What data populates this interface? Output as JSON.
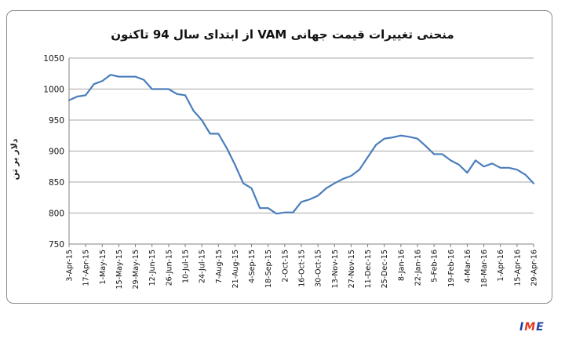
{
  "chart_data": {
    "type": "line",
    "title": "منحنی تغییرات قیمت جهانی VAM از ابتدای سال 94 تاکنون",
    "xlabel": "",
    "ylabel": "دلار بر تن",
    "ylim": [
      750,
      1050
    ],
    "yticks": [
      750,
      800,
      850,
      900,
      950,
      1000,
      1050
    ],
    "grid": true,
    "legend": "none",
    "line_color": "#4a7ebb",
    "xtick_labels": [
      "3-Apr-15",
      "17-Apr-15",
      "1-May-15",
      "15-May-15",
      "29-May-15",
      "12-Jun-15",
      "26-Jun-15",
      "10-Jul-15",
      "24-Jul-15",
      "7-Aug-15",
      "21-Aug-15",
      "4-Sep-15",
      "18-Sep-15",
      "2-Oct-15",
      "16-Oct-15",
      "30-Oct-15",
      "13-Nov-15",
      "27-Nov-15",
      "11-Dec-15",
      "25-Dec-15",
      "8-Jan-16",
      "22-Jan-16",
      "5-Feb-16",
      "19-Feb-16",
      "4-Mar-16",
      "18-Mar-16",
      "1-Apr-16",
      "15-Apr-16",
      "29-Apr-16"
    ],
    "x": [
      "3-Apr-15",
      "10-Apr-15",
      "17-Apr-15",
      "24-Apr-15",
      "1-May-15",
      "8-May-15",
      "15-May-15",
      "22-May-15",
      "29-May-15",
      "5-Jun-15",
      "12-Jun-15",
      "19-Jun-15",
      "26-Jun-15",
      "3-Jul-15",
      "10-Jul-15",
      "17-Jul-15",
      "24-Jul-15",
      "31-Jul-15",
      "7-Aug-15",
      "14-Aug-15",
      "21-Aug-15",
      "28-Aug-15",
      "4-Sep-15",
      "11-Sep-15",
      "18-Sep-15",
      "25-Sep-15",
      "2-Oct-15",
      "9-Oct-15",
      "16-Oct-15",
      "23-Oct-15",
      "30-Oct-15",
      "6-Nov-15",
      "13-Nov-15",
      "20-Nov-15",
      "27-Nov-15",
      "4-Dec-15",
      "11-Dec-15",
      "18-Dec-15",
      "25-Dec-15",
      "1-Jan-16",
      "8-Jan-16",
      "15-Jan-16",
      "22-Jan-16",
      "29-Jan-16",
      "5-Feb-16",
      "12-Feb-16",
      "19-Feb-16",
      "26-Feb-16",
      "4-Mar-16",
      "11-Mar-16",
      "18-Mar-16",
      "25-Mar-16",
      "1-Apr-16",
      "8-Apr-16",
      "15-Apr-16",
      "22-Apr-16",
      "29-Apr-16"
    ],
    "values": [
      982,
      988,
      990,
      1008,
      1013,
      1023,
      1020,
      1020,
      1020,
      1015,
      1000,
      1000,
      1000,
      992,
      990,
      965,
      950,
      928,
      928,
      905,
      878,
      848,
      840,
      808,
      808,
      799,
      801,
      801,
      818,
      822,
      828,
      840,
      848,
      855,
      860,
      870,
      890,
      910,
      920,
      922,
      925,
      923,
      920,
      908,
      895,
      895,
      885,
      878,
      865,
      885,
      875,
      880,
      873,
      873,
      870,
      862,
      848
    ]
  },
  "logo_text": [
    "I",
    "M",
    "E"
  ]
}
